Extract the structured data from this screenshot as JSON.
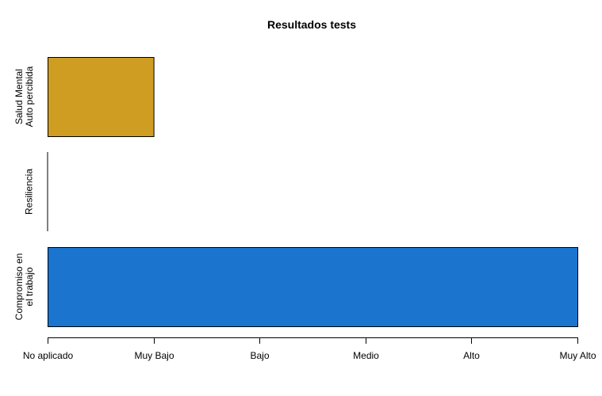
{
  "chart_data": {
    "type": "bar",
    "orientation": "horizontal",
    "title": "Resultados tests",
    "xlabel": "",
    "ylabel": "",
    "x_tick_labels": [
      "No aplicado",
      "Muy Bajo",
      "Bajo",
      "Medio",
      "Alto",
      "Muy Alto"
    ],
    "xlim": [
      0,
      5
    ],
    "categories": [
      [
        "Salud Mental",
        "Auto percibida"
      ],
      [
        "Resiliencia"
      ],
      [
        "Compromiso en",
        "el trabajo"
      ]
    ],
    "values": [
      1,
      0,
      5
    ],
    "colors": [
      "#CF9D22",
      "#CF9D22",
      "#1B75CF"
    ],
    "grid": false,
    "legend": "none"
  }
}
